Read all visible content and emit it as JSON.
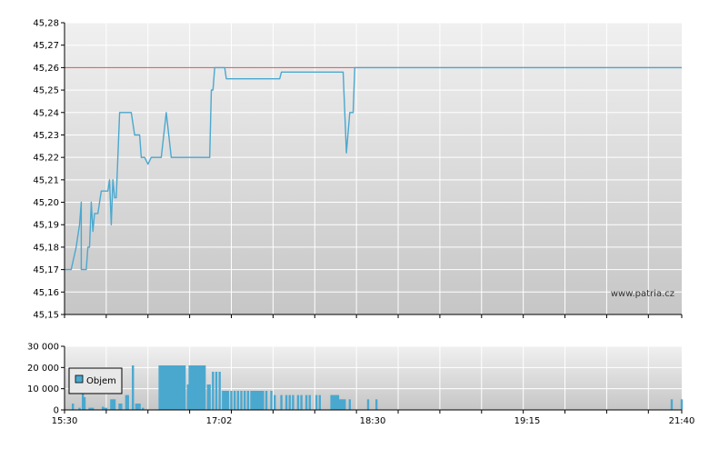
{
  "watermark": "www.patria.cz",
  "legend": {
    "label": "Objem"
  },
  "colors": {
    "line": "#4aa8cf",
    "reference": "#e05050",
    "bars": "#4aa8cf",
    "grid": "#ffffff",
    "bg_top": "#f0f0f0",
    "bg_bottom": "#c6c6c6"
  },
  "chart_data": [
    {
      "type": "line",
      "name": "price",
      "ylim": [
        45.15,
        45.28
      ],
      "ytick_labels": [
        "45,28",
        "45,27",
        "45,26",
        "45,25",
        "45,24",
        "45,23",
        "45,22",
        "45,21",
        "45,20",
        "45,19",
        "45,18",
        "45,17",
        "45,16",
        "45,15"
      ],
      "xlim": [
        "15:30",
        "21:40"
      ],
      "reference_line": 45.26,
      "points": [
        [
          "15:30",
          45.17
        ],
        [
          "15:34",
          45.17
        ],
        [
          "15:37",
          45.18
        ],
        [
          "15:39",
          45.19
        ],
        [
          "15:40",
          45.2
        ],
        [
          "15:40",
          45.17
        ],
        [
          "15:42",
          45.17
        ],
        [
          "15:43",
          45.17
        ],
        [
          "15:44",
          45.18
        ],
        [
          "15:45",
          45.18
        ],
        [
          "15:46",
          45.2
        ],
        [
          "15:47",
          45.187
        ],
        [
          "15:48",
          45.195
        ],
        [
          "15:50",
          45.195
        ],
        [
          "15:52",
          45.205
        ],
        [
          "15:56",
          45.205
        ],
        [
          "15:57",
          45.21
        ],
        [
          "15:58",
          45.19
        ],
        [
          "15:59",
          45.21
        ],
        [
          "16:00",
          45.202
        ],
        [
          "16:01",
          45.202
        ],
        [
          "16:03",
          45.24
        ],
        [
          "16:10",
          45.24
        ],
        [
          "16:12",
          45.23
        ],
        [
          "16:15",
          45.23
        ],
        [
          "16:16",
          45.22
        ],
        [
          "16:18",
          45.22
        ],
        [
          "16:20",
          45.217
        ],
        [
          "16:22",
          45.22
        ],
        [
          "16:28",
          45.22
        ],
        [
          "16:31",
          45.24
        ],
        [
          "16:34",
          45.22
        ],
        [
          "16:52",
          45.22
        ],
        [
          "16:57",
          45.22
        ],
        [
          "16:58",
          45.25
        ],
        [
          "16:59",
          45.25
        ],
        [
          "17:00",
          45.26
        ],
        [
          "17:04",
          45.26
        ],
        [
          "17:06",
          45.26
        ],
        [
          "17:07",
          45.255
        ],
        [
          "17:32",
          45.255
        ],
        [
          "17:39",
          45.255
        ],
        [
          "17:40",
          45.258
        ],
        [
          "18:14",
          45.258
        ],
        [
          "18:17",
          45.258
        ],
        [
          "18:19",
          45.222
        ],
        [
          "18:21",
          45.24
        ],
        [
          "18:23",
          45.24
        ],
        [
          "18:24",
          45.26
        ],
        [
          "21:40",
          45.26
        ]
      ]
    },
    {
      "type": "bar",
      "name": "Objem",
      "ylim": [
        0,
        30000
      ],
      "ytick_labels": [
        "30 000",
        "20 000",
        "10 000",
        "0"
      ],
      "xlim": [
        "15:30",
        "21:40"
      ],
      "xtick_labels": [
        "15:30",
        "17:02",
        "18:30",
        "19:15",
        "21:40"
      ],
      "bars": [
        [
          "15:35",
          3000
        ],
        [
          "15:39",
          1000
        ],
        [
          "15:41",
          19000
        ],
        [
          "15:42",
          6000
        ],
        [
          "15:45",
          1000
        ],
        [
          "15:46",
          1000
        ],
        [
          "15:47",
          1000
        ],
        [
          "15:53",
          1500
        ],
        [
          "15:54",
          1000
        ],
        [
          "15:55",
          1000
        ],
        [
          "15:58",
          5000
        ],
        [
          "15:59",
          5000
        ],
        [
          "16:00",
          5000
        ],
        [
          "16:03",
          3000
        ],
        [
          "16:04",
          3000
        ],
        [
          "16:07",
          7000
        ],
        [
          "16:08",
          7000
        ],
        [
          "16:11",
          21000
        ],
        [
          "16:13",
          3000
        ],
        [
          "16:14",
          3000
        ],
        [
          "16:15",
          3000
        ],
        [
          "16:17",
          1000
        ],
        [
          "16:27",
          21000
        ],
        [
          "16:28",
          21000
        ],
        [
          "16:29",
          21000
        ],
        [
          "16:30",
          21000
        ],
        [
          "16:31",
          21000
        ],
        [
          "16:32",
          21000
        ],
        [
          "16:33",
          21000
        ],
        [
          "16:34",
          21000
        ],
        [
          "16:35",
          21000
        ],
        [
          "16:36",
          21000
        ],
        [
          "16:37",
          21000
        ],
        [
          "16:38",
          21000
        ],
        [
          "16:39",
          21000
        ],
        [
          "16:40",
          21000
        ],
        [
          "16:41",
          21000
        ],
        [
          "16:42",
          21000
        ],
        [
          "16:44",
          12000
        ],
        [
          "16:45",
          21000
        ],
        [
          "16:46",
          21000
        ],
        [
          "16:47",
          21000
        ],
        [
          "16:48",
          21000
        ],
        [
          "16:49",
          21000
        ],
        [
          "16:50",
          21000
        ],
        [
          "16:51",
          21000
        ],
        [
          "16:52",
          21000
        ],
        [
          "16:53",
          21000
        ],
        [
          "16:54",
          21000
        ],
        [
          "16:56",
          12000
        ],
        [
          "16:57",
          12000
        ],
        [
          "16:59",
          18000
        ],
        [
          "17:01",
          18000
        ],
        [
          "17:03",
          18000
        ],
        [
          "17:05",
          9000
        ],
        [
          "17:06",
          9000
        ],
        [
          "17:07",
          9000
        ],
        [
          "17:08",
          9000
        ],
        [
          "17:10",
          9000
        ],
        [
          "17:12",
          9000
        ],
        [
          "17:14",
          9000
        ],
        [
          "17:16",
          9000
        ],
        [
          "17:18",
          9000
        ],
        [
          "17:20",
          9000
        ],
        [
          "17:22",
          9000
        ],
        [
          "17:23",
          9000
        ],
        [
          "17:24",
          9000
        ],
        [
          "17:25",
          9000
        ],
        [
          "17:26",
          9000
        ],
        [
          "17:27",
          9000
        ],
        [
          "17:28",
          9000
        ],
        [
          "17:29",
          9000
        ],
        [
          "17:31",
          9000
        ],
        [
          "17:34",
          9000
        ],
        [
          "17:36",
          7000
        ],
        [
          "17:40",
          7000
        ],
        [
          "17:43",
          7000
        ],
        [
          "17:45",
          7000
        ],
        [
          "17:47",
          7000
        ],
        [
          "17:50",
          7000
        ],
        [
          "17:52",
          7000
        ],
        [
          "17:55",
          7000
        ],
        [
          "17:57",
          7000
        ],
        [
          "18:01",
          7000
        ],
        [
          "18:03",
          7000
        ],
        [
          "18:10",
          7000
        ],
        [
          "18:11",
          7000
        ],
        [
          "18:12",
          7000
        ],
        [
          "18:13",
          7000
        ],
        [
          "18:14",
          7000
        ],
        [
          "18:15",
          5000
        ],
        [
          "18:16",
          5000
        ],
        [
          "18:17",
          5000
        ],
        [
          "18:18",
          5000
        ],
        [
          "18:21",
          5000
        ],
        [
          "18:32",
          5000
        ],
        [
          "18:37",
          5000
        ],
        [
          "21:34",
          5000
        ],
        [
          "21:40",
          5000
        ]
      ]
    }
  ]
}
